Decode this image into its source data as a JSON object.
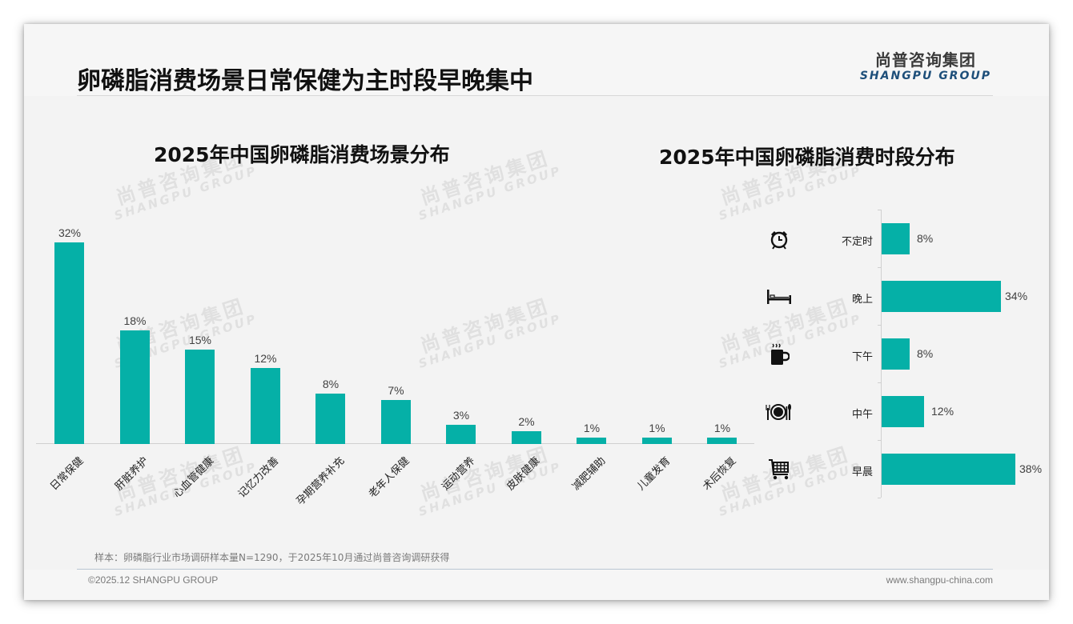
{
  "header": {
    "title": "卵磷脂消费场景日常保健为主时段早晚集中",
    "logo_cn": "尚普咨询集团",
    "logo_en": "SHANGPU GROUP"
  },
  "watermark": {
    "cn": "尚普咨询集团",
    "en": "SHANGPU GROUP"
  },
  "colors": {
    "bar": "#05b0a7",
    "background": "#f3f3f3",
    "logo_en": "#1e4f7a"
  },
  "chart_data": [
    {
      "type": "bar",
      "title": "2025年中国卵磷脂消费场景分布",
      "categories": [
        "日常保健",
        "肝脏养护",
        "心血管健康",
        "记忆力改善",
        "孕期营养补充",
        "老年人保健",
        "运动营养",
        "皮肤健康",
        "减肥辅助",
        "儿童发育",
        "术后恢复"
      ],
      "values": [
        32,
        18,
        15,
        12,
        8,
        7,
        3,
        2,
        1,
        1,
        1
      ],
      "labels": [
        "32%",
        "18%",
        "15%",
        "12%",
        "8%",
        "7%",
        "3%",
        "2%",
        "1%",
        "1%",
        "1%"
      ],
      "xlabel": "",
      "ylabel": "",
      "unit": "%",
      "ylim": [
        0,
        32
      ],
      "grid": false,
      "legend": null
    },
    {
      "type": "bar",
      "orientation": "horizontal",
      "title": "2025年中国卵磷脂消费时段分布",
      "categories": [
        "不定时",
        "晚上",
        "下午",
        "中午",
        "早晨"
      ],
      "values": [
        8,
        34,
        8,
        12,
        38
      ],
      "labels": [
        "8%",
        "34%",
        "8%",
        "12%",
        "38%"
      ],
      "icons": [
        "alarm-clock-icon",
        "bed-icon",
        "coffee-cup-icon",
        "plate-cutlery-icon",
        "shopping-cart-icon"
      ],
      "xlabel": "",
      "ylabel": "",
      "unit": "%",
      "xlim": [
        0,
        38
      ],
      "grid": false,
      "legend": null
    }
  ],
  "footer": {
    "note": "样本：卵磷脂行业市场调研样本量N=1290，于2025年10月通过尚普咨询调研获得",
    "copyright": "©2025.12 SHANGPU GROUP",
    "website": "www.shangpu-china.com"
  }
}
